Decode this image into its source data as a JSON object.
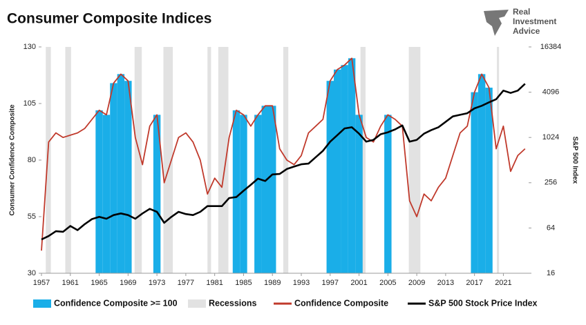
{
  "chart_data": {
    "type": "line",
    "title": "Consumer Composite Indices",
    "logo": [
      "Real",
      "Investment",
      "Advice"
    ],
    "ylabel": "Consumer Confidence Composite",
    "y2label": "S&P 500 Index",
    "x": [
      1957,
      1958,
      1959,
      1960,
      1961,
      1962,
      1963,
      1964,
      1965,
      1966,
      1967,
      1968,
      1969,
      1970,
      1971,
      1972,
      1973,
      1974,
      1975,
      1976,
      1977,
      1978,
      1979,
      1980,
      1981,
      1982,
      1983,
      1984,
      1985,
      1986,
      1987,
      1988,
      1989,
      1990,
      1991,
      1992,
      1993,
      1994,
      1995,
      1996,
      1997,
      1998,
      1999,
      2000,
      2001,
      2002,
      2003,
      2004,
      2005,
      2006,
      2007,
      2008,
      2009,
      2010,
      2011,
      2012,
      2013,
      2014,
      2015,
      2016,
      2017,
      2018,
      2019,
      2020,
      2021,
      2022,
      2023,
      2024
    ],
    "series": [
      {
        "name": "Confidence Composite",
        "color": "#c0392b",
        "values": [
          40,
          88,
          92,
          90,
          91,
          92,
          94,
          98,
          102,
          100,
          114,
          118,
          115,
          90,
          78,
          95,
          100,
          70,
          80,
          90,
          92,
          88,
          80,
          65,
          72,
          68,
          90,
          102,
          100,
          95,
          100,
          104,
          104,
          85,
          80,
          78,
          82,
          92,
          95,
          98,
          115,
          120,
          122,
          125,
          100,
          90,
          88,
          95,
          100,
          98,
          95,
          62,
          55,
          65,
          62,
          68,
          72,
          82,
          92,
          95,
          110,
          118,
          112,
          85,
          95,
          75,
          82,
          85
        ]
      },
      {
        "name": "S&P 500 Stock Price Index",
        "color": "#000000",
        "axis": "y2",
        "values": [
          45,
          50,
          58,
          57,
          68,
          60,
          72,
          84,
          90,
          85,
          95,
          100,
          95,
          85,
          100,
          115,
          105,
          75,
          90,
          105,
          98,
          95,
          105,
          125,
          125,
          125,
          160,
          165,
          200,
          240,
          290,
          270,
          330,
          335,
          390,
          420,
          450,
          460,
          560,
          680,
          900,
          1100,
          1350,
          1400,
          1150,
          900,
          950,
          1130,
          1200,
          1310,
          1480,
          900,
          950,
          1150,
          1280,
          1400,
          1650,
          1950,
          2050,
          2150,
          2500,
          2700,
          3000,
          3300,
          4300,
          4000,
          4300,
          5300
        ]
      }
    ],
    "highlight": {
      "name": "Confidence Composite >= 100",
      "color": "#1aaee8",
      "threshold": 100
    },
    "recessions": {
      "name": "Recessions",
      "color": "#e2e2e2",
      "periods": [
        [
          1957.6,
          1958.3
        ],
        [
          1960.3,
          1961.1
        ],
        [
          1969.9,
          1970.9
        ],
        [
          1973.9,
          1975.2
        ],
        [
          1980.0,
          1980.5
        ],
        [
          1981.5,
          1982.9
        ],
        [
          1990.5,
          1991.2
        ],
        [
          2001.2,
          2001.9
        ],
        [
          2007.9,
          2009.5
        ],
        [
          2020.1,
          2020.4
        ]
      ]
    },
    "xlim": [
      1957,
      2024.5
    ],
    "xticks": [
      1957,
      1961,
      1965,
      1969,
      1973,
      1977,
      1981,
      1985,
      1989,
      1993,
      1997,
      2001,
      2005,
      2009,
      2013,
      2017,
      2021
    ],
    "ylim": [
      30,
      130
    ],
    "yticks": [
      30,
      55,
      80,
      105,
      130
    ],
    "y2lim": [
      16,
      16384
    ],
    "y2ticks": [
      16,
      64,
      256,
      1024,
      4096,
      16384
    ],
    "y2scale": "log"
  }
}
